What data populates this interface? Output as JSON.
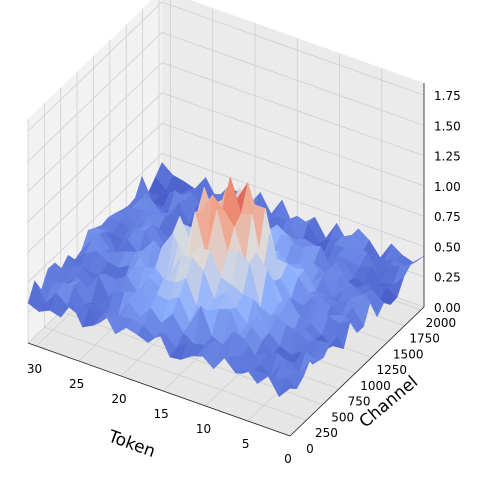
{
  "chart_data": {
    "type": "surface3d",
    "title": "",
    "xlabel": "Token",
    "ylabel": "Channel",
    "zlabel": "",
    "colormap": "coolwarm",
    "xlim": [
      0,
      31
    ],
    "ylim": [
      0,
      2047
    ],
    "zlim": [
      0,
      1.85
    ],
    "x_ticks": [
      "0",
      "5",
      "10",
      "15",
      "20",
      "25",
      "30"
    ],
    "y_ticks": [
      "0",
      "250",
      "500",
      "750",
      "1000",
      "1250",
      "1500",
      "1750",
      "2000"
    ],
    "z_ticks": [
      "0.00",
      "0.25",
      "0.50",
      "0.75",
      "1.00",
      "1.25",
      "1.50",
      "1.75"
    ],
    "grid": true,
    "colors": {
      "low": "#3b4cc0",
      "mid": "#dddddd",
      "high": "#b40426",
      "pane": "#f2f2f2",
      "gridline": "#cfcfcf"
    }
  }
}
